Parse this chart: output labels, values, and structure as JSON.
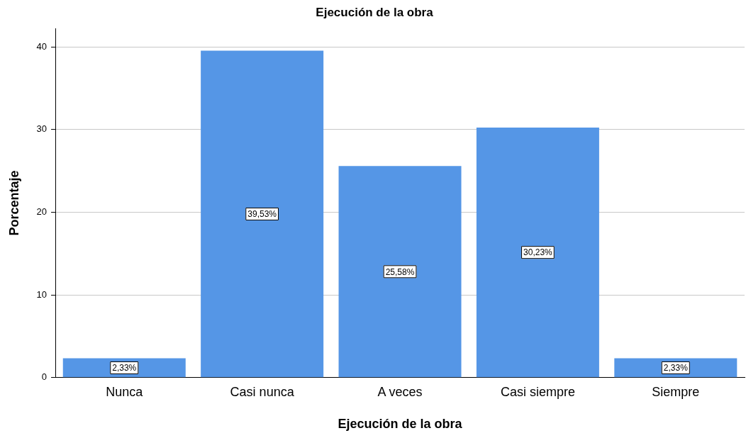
{
  "chart_data": {
    "type": "bar",
    "title": "Ejecución de la obra",
    "xlabel": "Ejecución de la obra",
    "ylabel": "Porcentaje",
    "categories": [
      "Nunca",
      "Casi nunca",
      "A veces",
      "Casi siempre",
      "Siempre"
    ],
    "values": [
      2.33,
      39.53,
      25.58,
      30.23,
      2.33
    ],
    "value_labels": [
      "2,33%",
      "39,53%",
      "25,58%",
      "30,23%",
      "2,33%"
    ],
    "color": "#5596e6",
    "ylim": [
      0,
      42.2
    ],
    "yticks": [
      0,
      10,
      20,
      30,
      40
    ],
    "grid": "y",
    "legend": false
  }
}
